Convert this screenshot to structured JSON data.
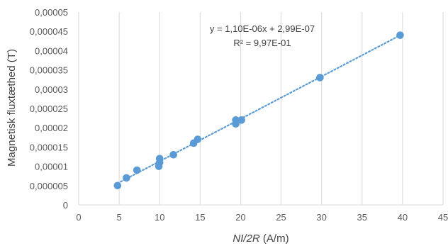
{
  "chart_data": {
    "type": "scatter",
    "xlabel_italic": "NI/2R",
    "xlabel_unit": " (A/m)",
    "ylabel": "Magnetisk fluxtæthed (T)",
    "xlim": [
      0,
      45
    ],
    "ylim": [
      0,
      5e-05
    ],
    "x_ticks": [
      "0",
      "5",
      "10",
      "15",
      "20",
      "25",
      "30",
      "35",
      "40",
      "45"
    ],
    "y_ticks": [
      "0",
      "0,000005",
      "0,00001",
      "0,000015",
      "0,00002",
      "0,000025",
      "0,00003",
      "0,000035",
      "0,00004",
      "0,000045",
      "0,00005"
    ],
    "grid": "vertical",
    "point_color": "#5B9BD5",
    "trendline": {
      "type": "linear",
      "slope": 1.1e-06,
      "intercept": 2.99e-07,
      "style": "dotted",
      "equation_text": "y = 1,10E-06x + 2,99E-07",
      "r2_text": "R² = 9,97E-01"
    },
    "points": [
      {
        "x": 4.8,
        "y": 5e-06
      },
      {
        "x": 5.9,
        "y": 7e-06
      },
      {
        "x": 7.2,
        "y": 9e-06
      },
      {
        "x": 9.9,
        "y": 1e-05
      },
      {
        "x": 10.0,
        "y": 1.1e-05
      },
      {
        "x": 10.0,
        "y": 1.2e-05
      },
      {
        "x": 11.7,
        "y": 1.3e-05
      },
      {
        "x": 14.2,
        "y": 1.6e-05
      },
      {
        "x": 14.7,
        "y": 1.7e-05
      },
      {
        "x": 19.4,
        "y": 2.1e-05
      },
      {
        "x": 19.4,
        "y": 2.2e-05
      },
      {
        "x": 20.1,
        "y": 2.2e-05
      },
      {
        "x": 29.8,
        "y": 3.3e-05
      },
      {
        "x": 39.7,
        "y": 4.4e-05
      }
    ]
  }
}
